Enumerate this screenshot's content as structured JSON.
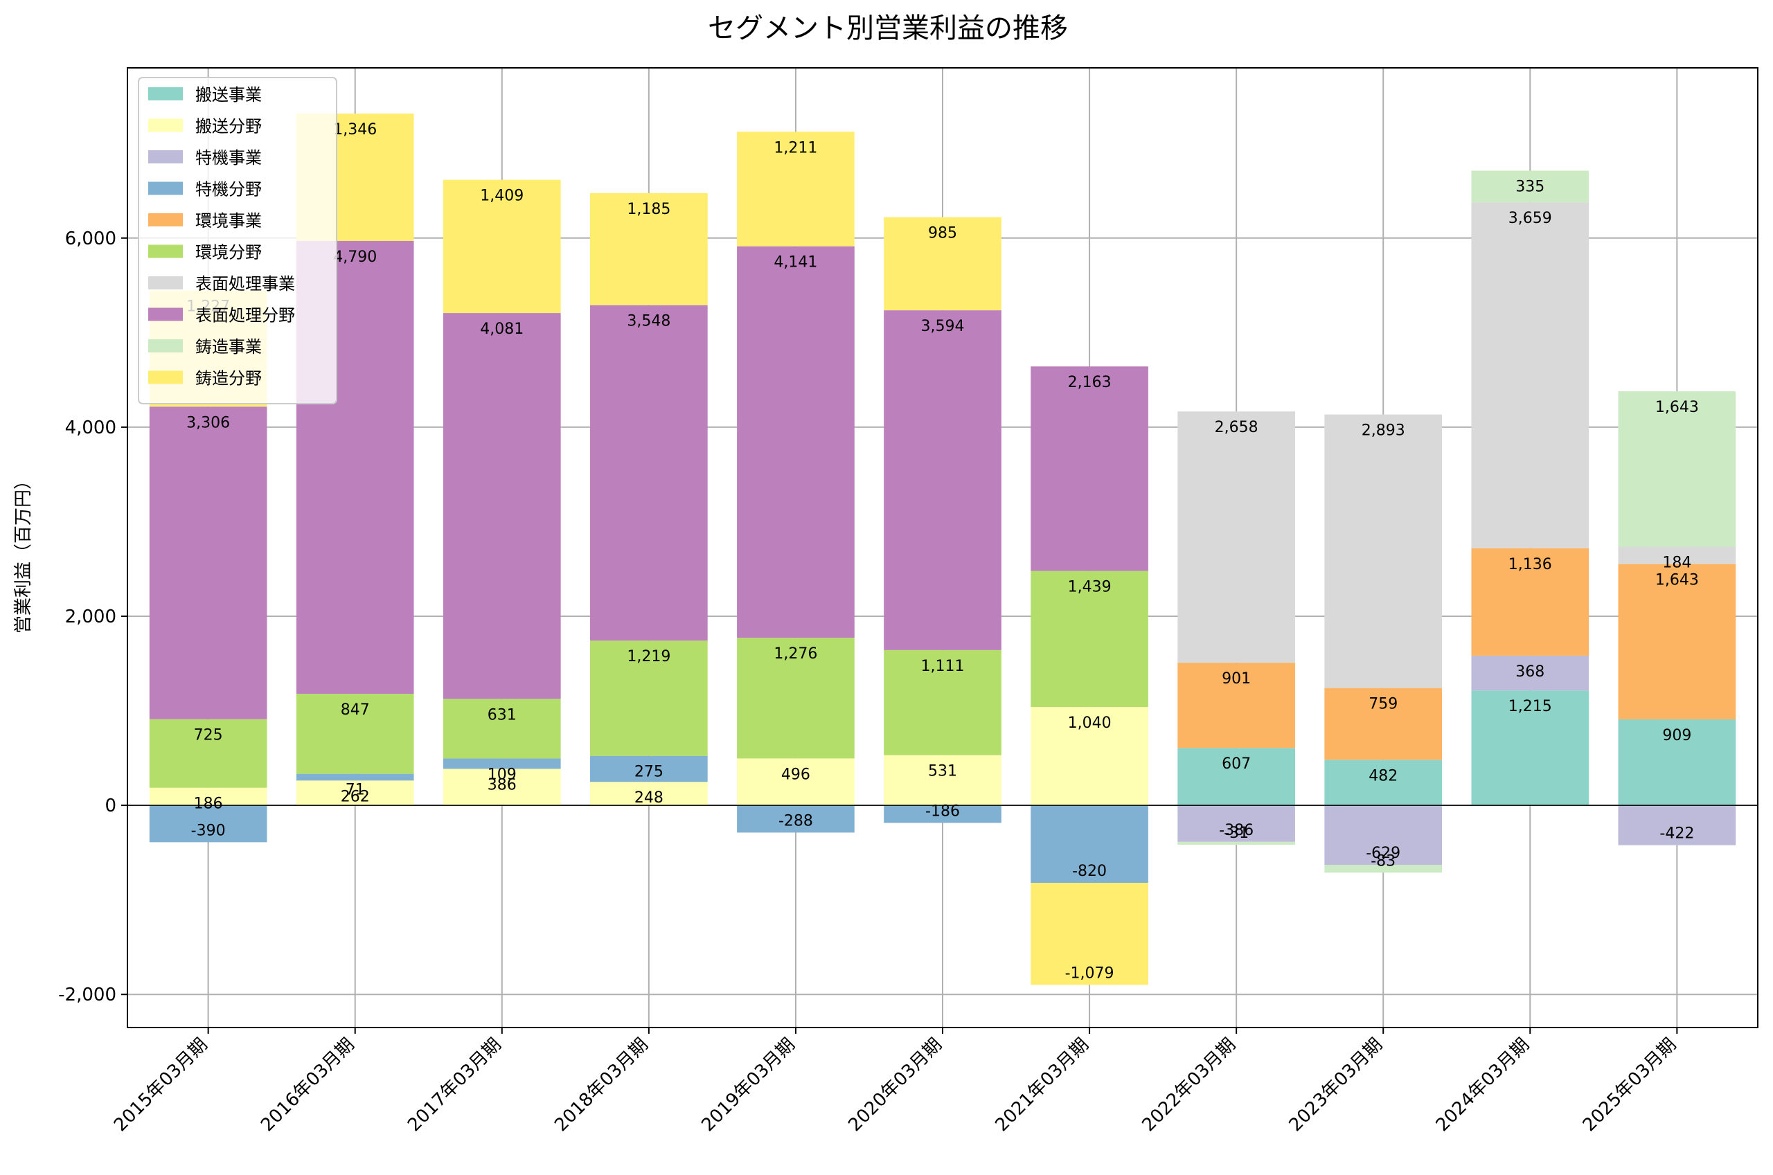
{
  "chart_data": {
    "type": "bar",
    "stacked": true,
    "title": "セグメント別営業利益の推移",
    "xlabel": "",
    "ylabel": "営業利益（百万円）",
    "ylim": [
      -2350,
      7800
    ],
    "yticks": [
      -2000,
      0,
      2000,
      4000,
      6000
    ],
    "ytick_labels": [
      "-2,000",
      "0",
      "2,000",
      "4,000",
      "6,000"
    ],
    "grid": true,
    "legend_position": "upper-left",
    "categories": [
      "2015年03月期",
      "2016年03月期",
      "2017年03月期",
      "2018年03月期",
      "2019年03月期",
      "2020年03月期",
      "2021年03月期",
      "2022年03月期",
      "2023年03月期",
      "2024年03月期",
      "2025年03月期"
    ],
    "series": [
      {
        "name": "搬送事業",
        "color": "#8dd3c7",
        "values": [
          null,
          null,
          null,
          null,
          null,
          null,
          null,
          607,
          482,
          1215,
          909
        ]
      },
      {
        "name": "搬送分野",
        "color": "#ffffb3",
        "values": [
          186,
          262,
          386,
          248,
          496,
          531,
          1040,
          null,
          null,
          null,
          null
        ]
      },
      {
        "name": "特機事業",
        "color": "#bebada",
        "values": [
          null,
          null,
          null,
          null,
          null,
          null,
          null,
          -386,
          -629,
          368,
          -422
        ]
      },
      {
        "name": "特機分野",
        "color": "#80b1d3",
        "values": [
          -390,
          71,
          109,
          275,
          -288,
          -186,
          -820,
          null,
          null,
          null,
          null
        ]
      },
      {
        "name": "環境事業",
        "color": "#fdb462",
        "values": [
          null,
          null,
          null,
          null,
          null,
          null,
          null,
          901,
          759,
          1136,
          1643
        ]
      },
      {
        "name": "環境分野",
        "color": "#b3de69",
        "values": [
          725,
          847,
          631,
          1219,
          1276,
          1111,
          1439,
          null,
          null,
          null,
          null
        ]
      },
      {
        "name": "表面処理事業",
        "color": "#d9d9d9",
        "values": [
          null,
          null,
          null,
          null,
          null,
          null,
          null,
          2658,
          2893,
          3659,
          184
        ]
      },
      {
        "name": "表面処理分野",
        "color": "#bc80bd",
        "values": [
          3306,
          4790,
          4081,
          3548,
          4141,
          3594,
          2163,
          null,
          null,
          null,
          null
        ]
      },
      {
        "name": "鋳造事業",
        "color": "#ccebc5",
        "values": [
          null,
          null,
          null,
          null,
          null,
          null,
          null,
          -31,
          -83,
          335,
          1643
        ]
      },
      {
        "name": "鋳造分野",
        "color": "#ffed6f",
        "values": [
          1227,
          1346,
          1409,
          1185,
          1211,
          985,
          -1079,
          null,
          null,
          null,
          null
        ]
      }
    ],
    "value_labels": [
      [
        "186",
        "-390",
        "725",
        "3,306",
        "1,227"
      ],
      [
        "262",
        "71",
        "847",
        "4,790",
        "1,346"
      ],
      [
        "386",
        "109",
        "631",
        "4,081",
        "1,409"
      ],
      [
        "248",
        "275",
        "1,219",
        "3,548",
        "1,185"
      ],
      [
        "496",
        "-288",
        "1,276",
        "4,141",
        "1,211"
      ],
      [
        "531",
        "-186",
        "1,111",
        "3,594",
        "985"
      ],
      [
        "1,040",
        "-820",
        "1,439",
        "2,163",
        "-1,079"
      ],
      [
        "607",
        "-386",
        "901",
        "2,658",
        "-31"
      ],
      [
        "482",
        "-629",
        "759",
        "2,893",
        "-83"
      ],
      [
        "1,215",
        "368",
        "1,136",
        "3,659",
        "335"
      ],
      [
        "909",
        "-422",
        "1,643",
        "184",
        "1,643"
      ]
    ]
  }
}
